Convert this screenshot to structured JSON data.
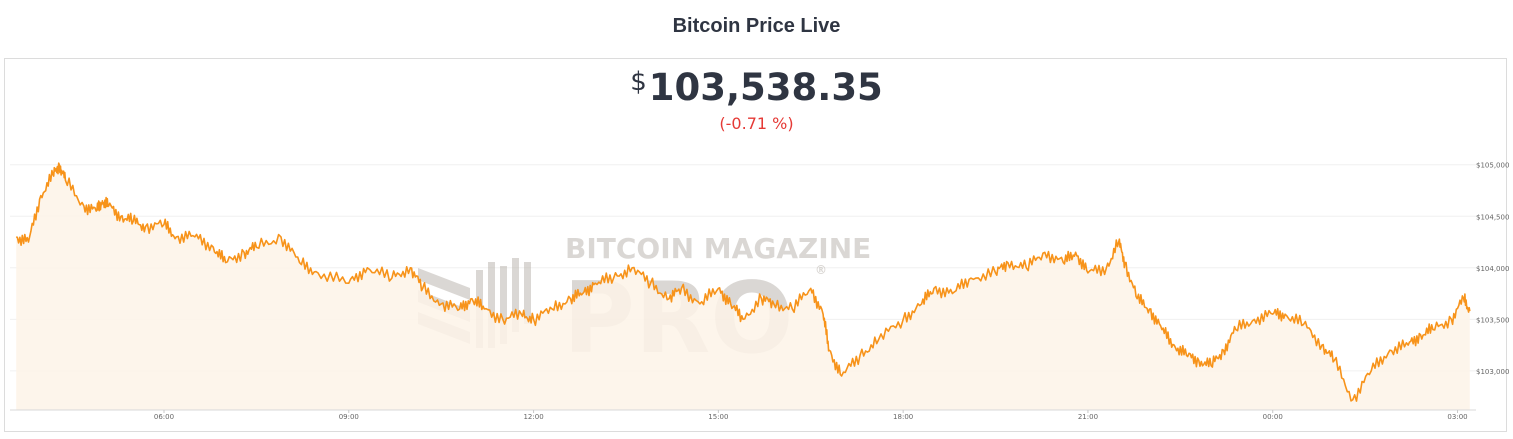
{
  "page": {
    "title": "Bitcoin Price Live"
  },
  "price": {
    "currency": "$",
    "value": "103,538.35",
    "change": "(-0.71 %)"
  },
  "watermark": {
    "line1": "BITCOIN MAGAZINE",
    "line2": "PRO",
    "registered": "®"
  },
  "colors": {
    "line": "#f7931a",
    "fill": "#fdf3e7",
    "change_negative": "#e53935",
    "text": "#2f3542"
  },
  "chart_data": {
    "type": "area",
    "title": "Bitcoin Price Live",
    "xlabel": "",
    "ylabel": "",
    "x_ticks": [
      "06:00",
      "09:00",
      "12:00",
      "15:00",
      "18:00",
      "21:00",
      "00:00",
      "03:00"
    ],
    "y_ticks": [
      "$103,000",
      "$103,500",
      "$104,000",
      "$104,500",
      "$105,000"
    ],
    "y_tick_values": [
      103000,
      103500,
      104000,
      104500,
      105000
    ],
    "ylim": [
      102620,
      105240
    ],
    "x_unit": "hours",
    "xlim": [
      3.5,
      27.3
    ],
    "grid": "horizontal",
    "x": [
      3.6,
      3.8,
      4.0,
      4.2,
      4.3,
      4.4,
      4.7,
      4.9,
      5.0,
      5.1,
      5.3,
      5.5,
      5.7,
      6.0,
      6.2,
      6.5,
      6.8,
      7.0,
      7.3,
      7.5,
      7.9,
      8.2,
      8.5,
      9.0,
      9.3,
      9.7,
      10.0,
      10.2,
      10.5,
      10.8,
      11.0,
      11.2,
      11.5,
      11.8,
      12.0,
      12.3,
      12.6,
      12.8,
      13.0,
      13.3,
      13.6,
      13.9,
      14.2,
      14.4,
      14.7,
      15.0,
      15.2,
      15.4,
      15.7,
      15.9,
      16.2,
      16.5,
      16.7,
      16.8,
      17.0,
      17.3,
      17.6,
      18.0,
      18.3,
      18.5,
      18.8,
      19.1,
      19.5,
      19.7,
      20.0,
      20.3,
      20.6,
      20.8,
      21.0,
      21.3,
      21.5,
      21.6,
      21.8,
      22.0,
      22.2,
      22.4,
      22.6,
      22.8,
      23.0,
      23.2,
      23.4,
      23.7,
      24.0,
      24.2,
      24.5,
      24.8,
      25.0,
      25.3,
      25.6,
      25.9,
      26.2,
      26.4,
      26.6,
      26.9,
      27.1,
      27.2
    ],
    "values": [
      104300,
      104250,
      104700,
      104900,
      105000,
      104850,
      104600,
      104550,
      104650,
      104600,
      104500,
      104450,
      104400,
      104420,
      104300,
      104300,
      104200,
      104050,
      104150,
      104200,
      104300,
      104050,
      103950,
      103850,
      104000,
      103900,
      104000,
      103800,
      103650,
      103600,
      103700,
      103600,
      103500,
      103550,
      103500,
      103600,
      103700,
      103750,
      103850,
      103900,
      104000,
      103850,
      103700,
      103800,
      103650,
      103800,
      103650,
      103500,
      103700,
      103650,
      103600,
      103800,
      103550,
      103200,
      102950,
      103150,
      103300,
      103500,
      103650,
      103800,
      103750,
      103900,
      103950,
      104050,
      104000,
      104150,
      104050,
      104150,
      103950,
      104000,
      104250,
      104050,
      103700,
      103600,
      103400,
      103250,
      103150,
      103100,
      103050,
      103200,
      103400,
      103500,
      103550,
      103550,
      103450,
      103250,
      103100,
      102720,
      103000,
      103200,
      103250,
      103350,
      103400,
      103500,
      103700,
      103580
    ]
  }
}
